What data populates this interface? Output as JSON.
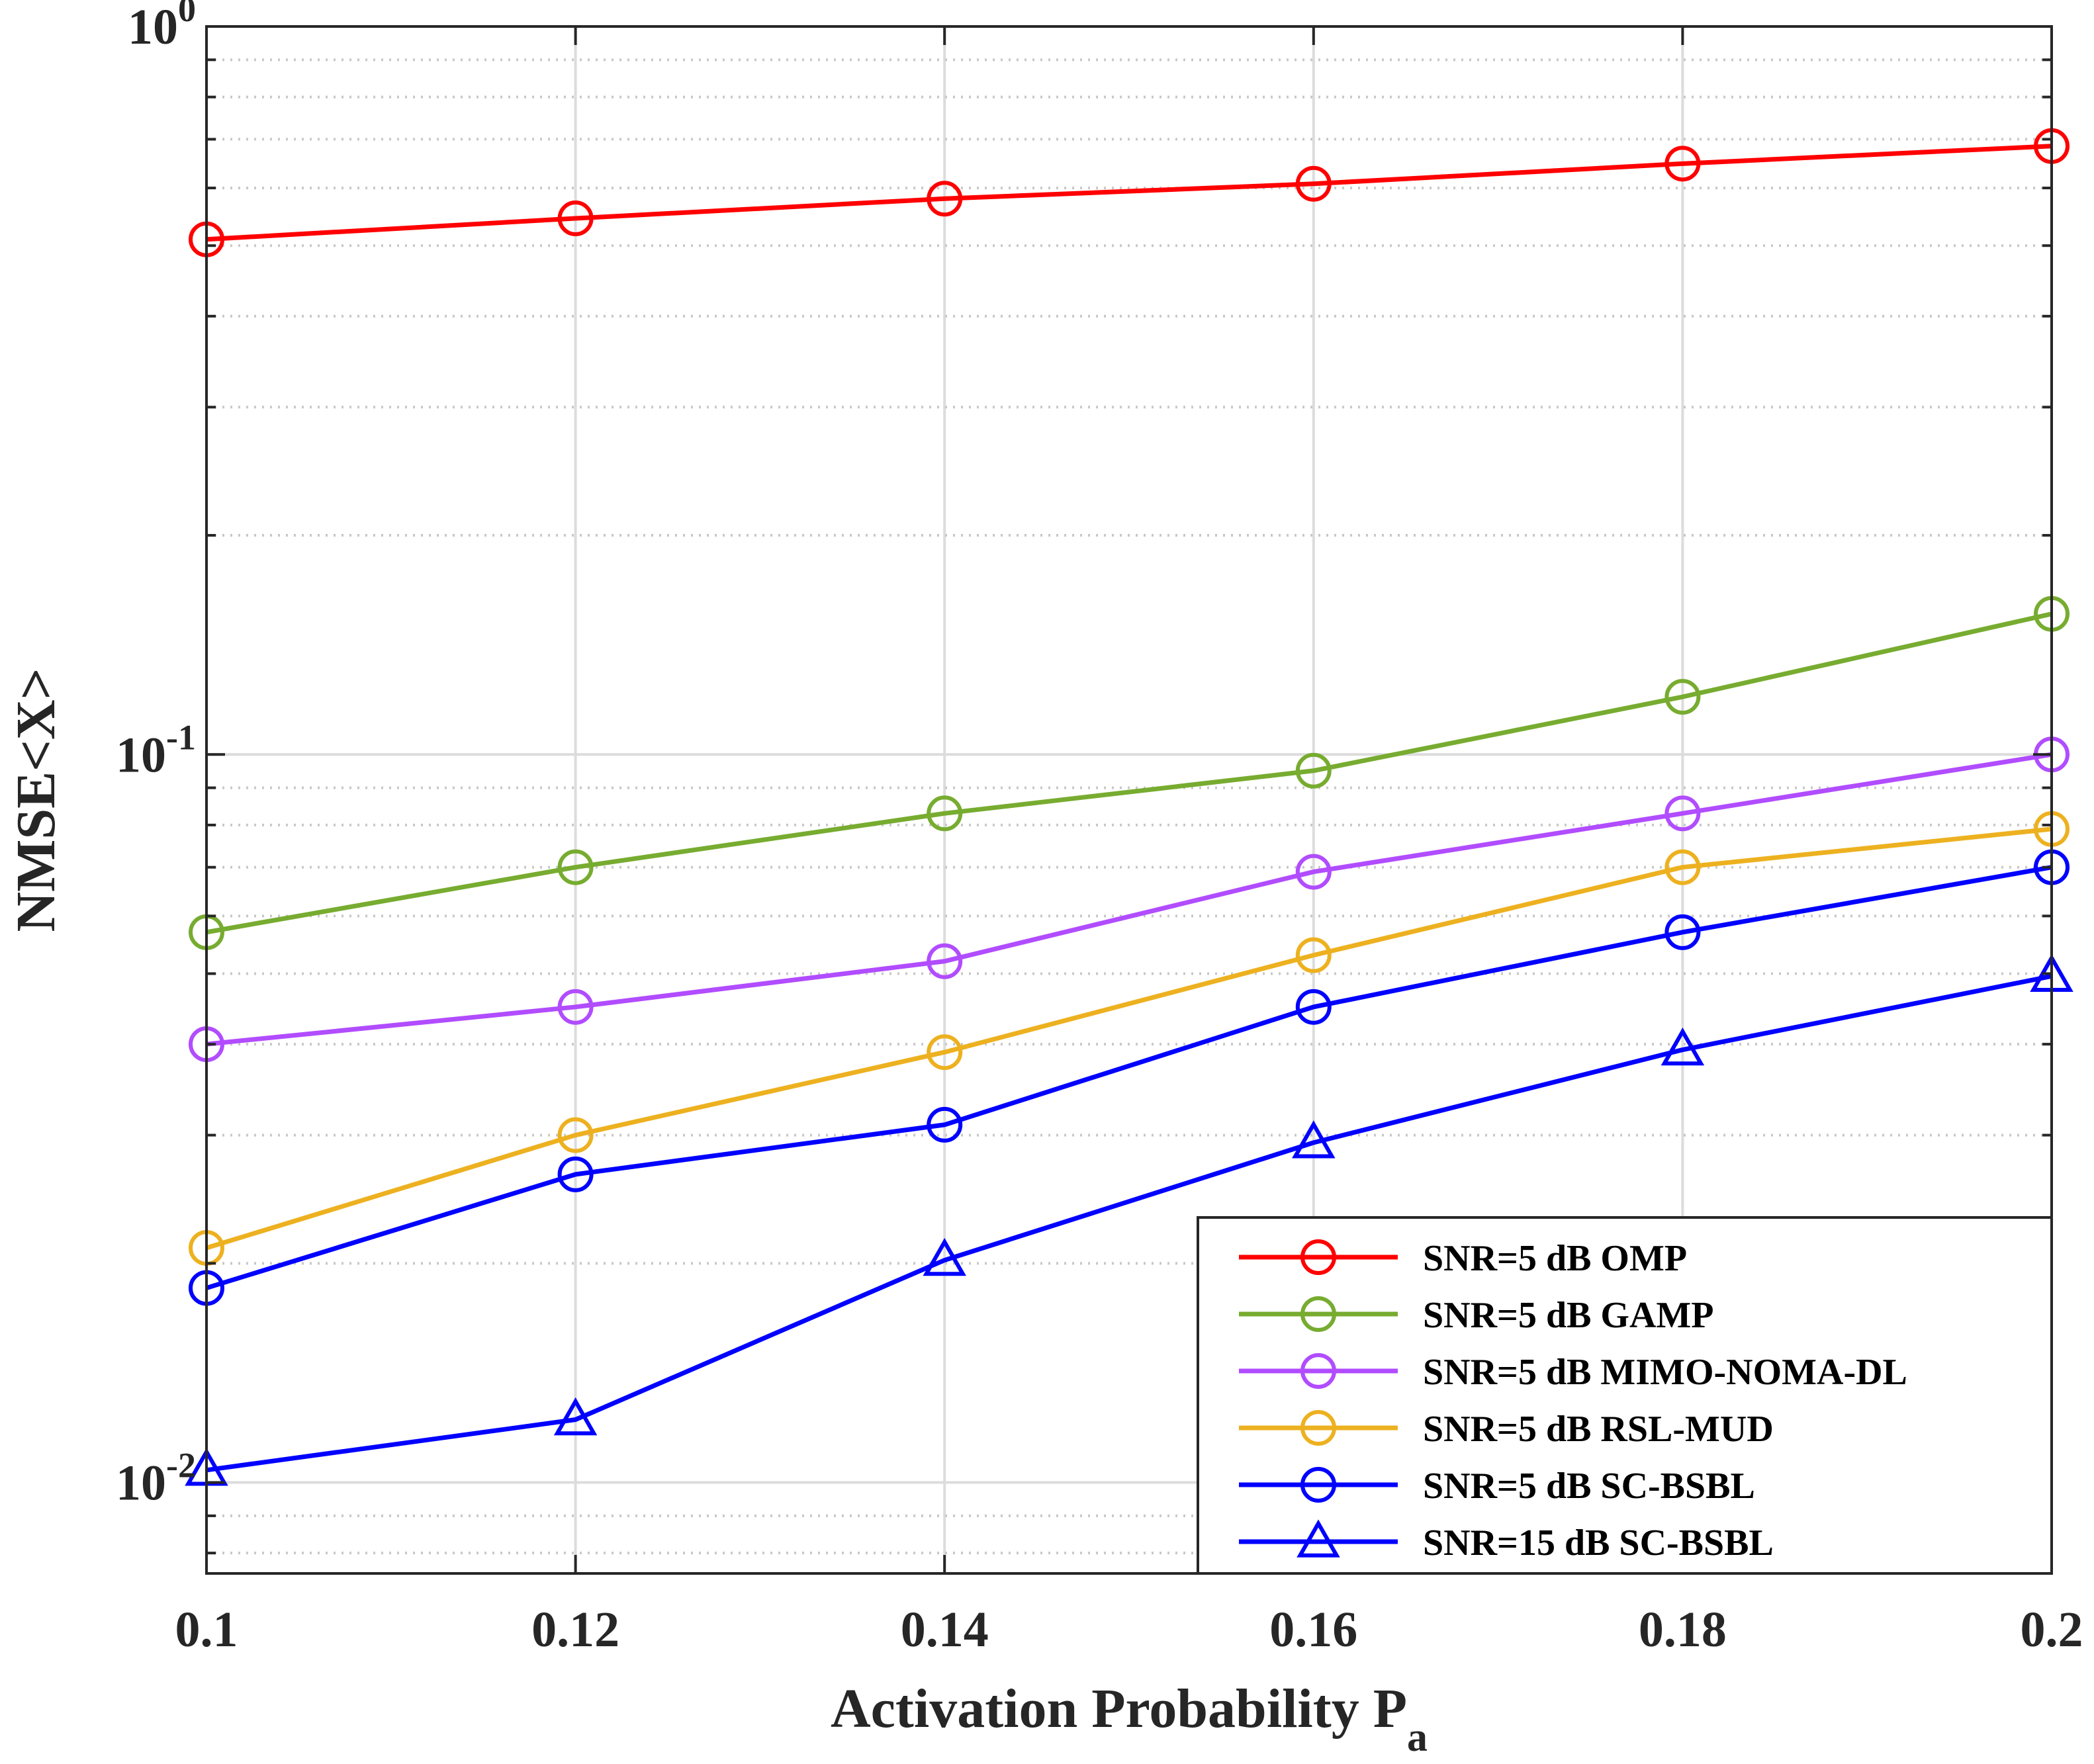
{
  "chart_data": {
    "type": "line",
    "xlabel": "Activation Probability P",
    "xlabel_sub": "a",
    "ylabel": "NMSE<X>",
    "yscale": "log",
    "xlim": [
      0.1,
      0.2
    ],
    "ylim": [
      0.0075,
      1.0
    ],
    "grid": true,
    "legend_position": "bottom-right",
    "x": [
      0.1,
      0.12,
      0.14,
      0.16,
      0.18,
      0.2
    ],
    "x_tick_labels": [
      "0.1",
      "0.12",
      "0.14",
      "0.16",
      "0.18",
      "0.2"
    ],
    "y_ticks": [
      {
        "value": 1.0,
        "base": "10",
        "exp": "0"
      },
      {
        "value": 0.1,
        "base": "10",
        "exp": "-1"
      },
      {
        "value": 0.01,
        "base": "10",
        "exp": "-2"
      }
    ],
    "series": [
      {
        "name": "SNR=5 dB OMP",
        "color": "#ff0000",
        "marker": "circle",
        "values": [
          0.51,
          0.545,
          0.58,
          0.608,
          0.648,
          0.685
        ]
      },
      {
        "name": "SNR=5 dB GAMP",
        "color": "#77ac30",
        "marker": "circle",
        "values": [
          0.057,
          0.07,
          0.083,
          0.095,
          0.12,
          0.156
        ]
      },
      {
        "name": "SNR=5 dB MIMO-NOMA-DL",
        "color": "#b14cff",
        "marker": "circle",
        "values": [
          0.04,
          0.045,
          0.052,
          0.069,
          0.083,
          0.1
        ]
      },
      {
        "name": "SNR=5 dB RSL-MUD",
        "color": "#edb120",
        "marker": "circle",
        "values": [
          0.021,
          0.03,
          0.039,
          0.053,
          0.07,
          0.079
        ]
      },
      {
        "name": "SNR=5 dB SC-BSBL",
        "color": "#0000ff",
        "marker": "circle",
        "values": [
          0.0185,
          0.0265,
          0.031,
          0.045,
          0.057,
          0.07
        ]
      },
      {
        "name": "SNR=15 dB SC-BSBL",
        "color": "#0000ff",
        "marker": "triangle",
        "values": [
          0.0104,
          0.0122,
          0.0202,
          0.0293,
          0.0393,
          0.0496
        ]
      }
    ]
  }
}
